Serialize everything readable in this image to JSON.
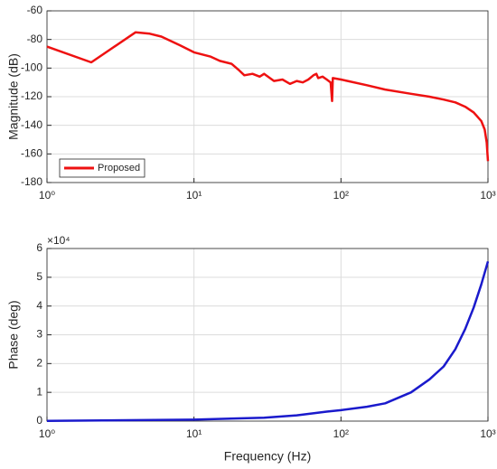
{
  "chart_data": [
    {
      "type": "line",
      "xscale": "log",
      "ylabel": "Magnitude (dB)",
      "xlim": [
        1,
        1000
      ],
      "xticks": [
        {
          "value": 1,
          "label": "10⁰"
        },
        {
          "value": 10,
          "label": "10¹"
        },
        {
          "value": 100,
          "label": "10²"
        },
        {
          "value": 1000,
          "label": "10³"
        }
      ],
      "ylim": [
        -180,
        -60
      ],
      "yticks": [
        -180,
        -160,
        -140,
        -120,
        -100,
        -80,
        -60
      ],
      "grid": true,
      "legend": "lower left",
      "x": [
        1,
        2,
        4,
        5,
        6,
        8,
        10,
        13,
        15,
        18,
        20,
        22,
        25,
        28,
        30,
        35,
        40,
        45,
        50,
        55,
        60,
        65,
        68,
        70,
        75,
        80,
        85,
        87,
        88,
        100,
        150,
        200,
        300,
        400,
        500,
        600,
        700,
        800,
        900,
        950,
        980,
        1000
      ],
      "series": [
        {
          "name": "Proposed",
          "color": "#ee1111",
          "values": [
            -85,
            -96,
            -75,
            -76,
            -78,
            -84,
            -89,
            -92,
            -95,
            -97,
            -101,
            -105,
            -104,
            -106,
            -104,
            -109,
            -108,
            -111,
            -109,
            -110,
            -108,
            -105,
            -104,
            -107,
            -106,
            -108,
            -110,
            -123,
            -107,
            -108,
            -112,
            -115,
            -118,
            -120,
            -122,
            -124,
            -127,
            -131,
            -137,
            -143,
            -152,
            -165
          ]
        }
      ]
    },
    {
      "type": "line",
      "xscale": "log",
      "ylabel": "Phase (deg)",
      "xlabel": "Frequency (Hz)",
      "y_multiplier": "×10⁴",
      "xlim": [
        1,
        1000
      ],
      "xticks": [
        {
          "value": 1,
          "label": "10⁰"
        },
        {
          "value": 10,
          "label": "10¹"
        },
        {
          "value": 100,
          "label": "10²"
        },
        {
          "value": 1000,
          "label": "10³"
        }
      ],
      "ylim": [
        0,
        6
      ],
      "yticks": [
        0,
        1,
        2,
        3,
        4,
        5,
        6
      ],
      "grid": true,
      "x": [
        1,
        10,
        30,
        50,
        80,
        100,
        150,
        200,
        300,
        400,
        500,
        600,
        700,
        800,
        900,
        1000
      ],
      "series": [
        {
          "color": "#1a1acc",
          "values": [
            0.01,
            0.05,
            0.12,
            0.2,
            0.33,
            0.38,
            0.5,
            0.62,
            1.0,
            1.45,
            1.9,
            2.5,
            3.2,
            3.95,
            4.75,
            5.55
          ]
        }
      ]
    }
  ]
}
